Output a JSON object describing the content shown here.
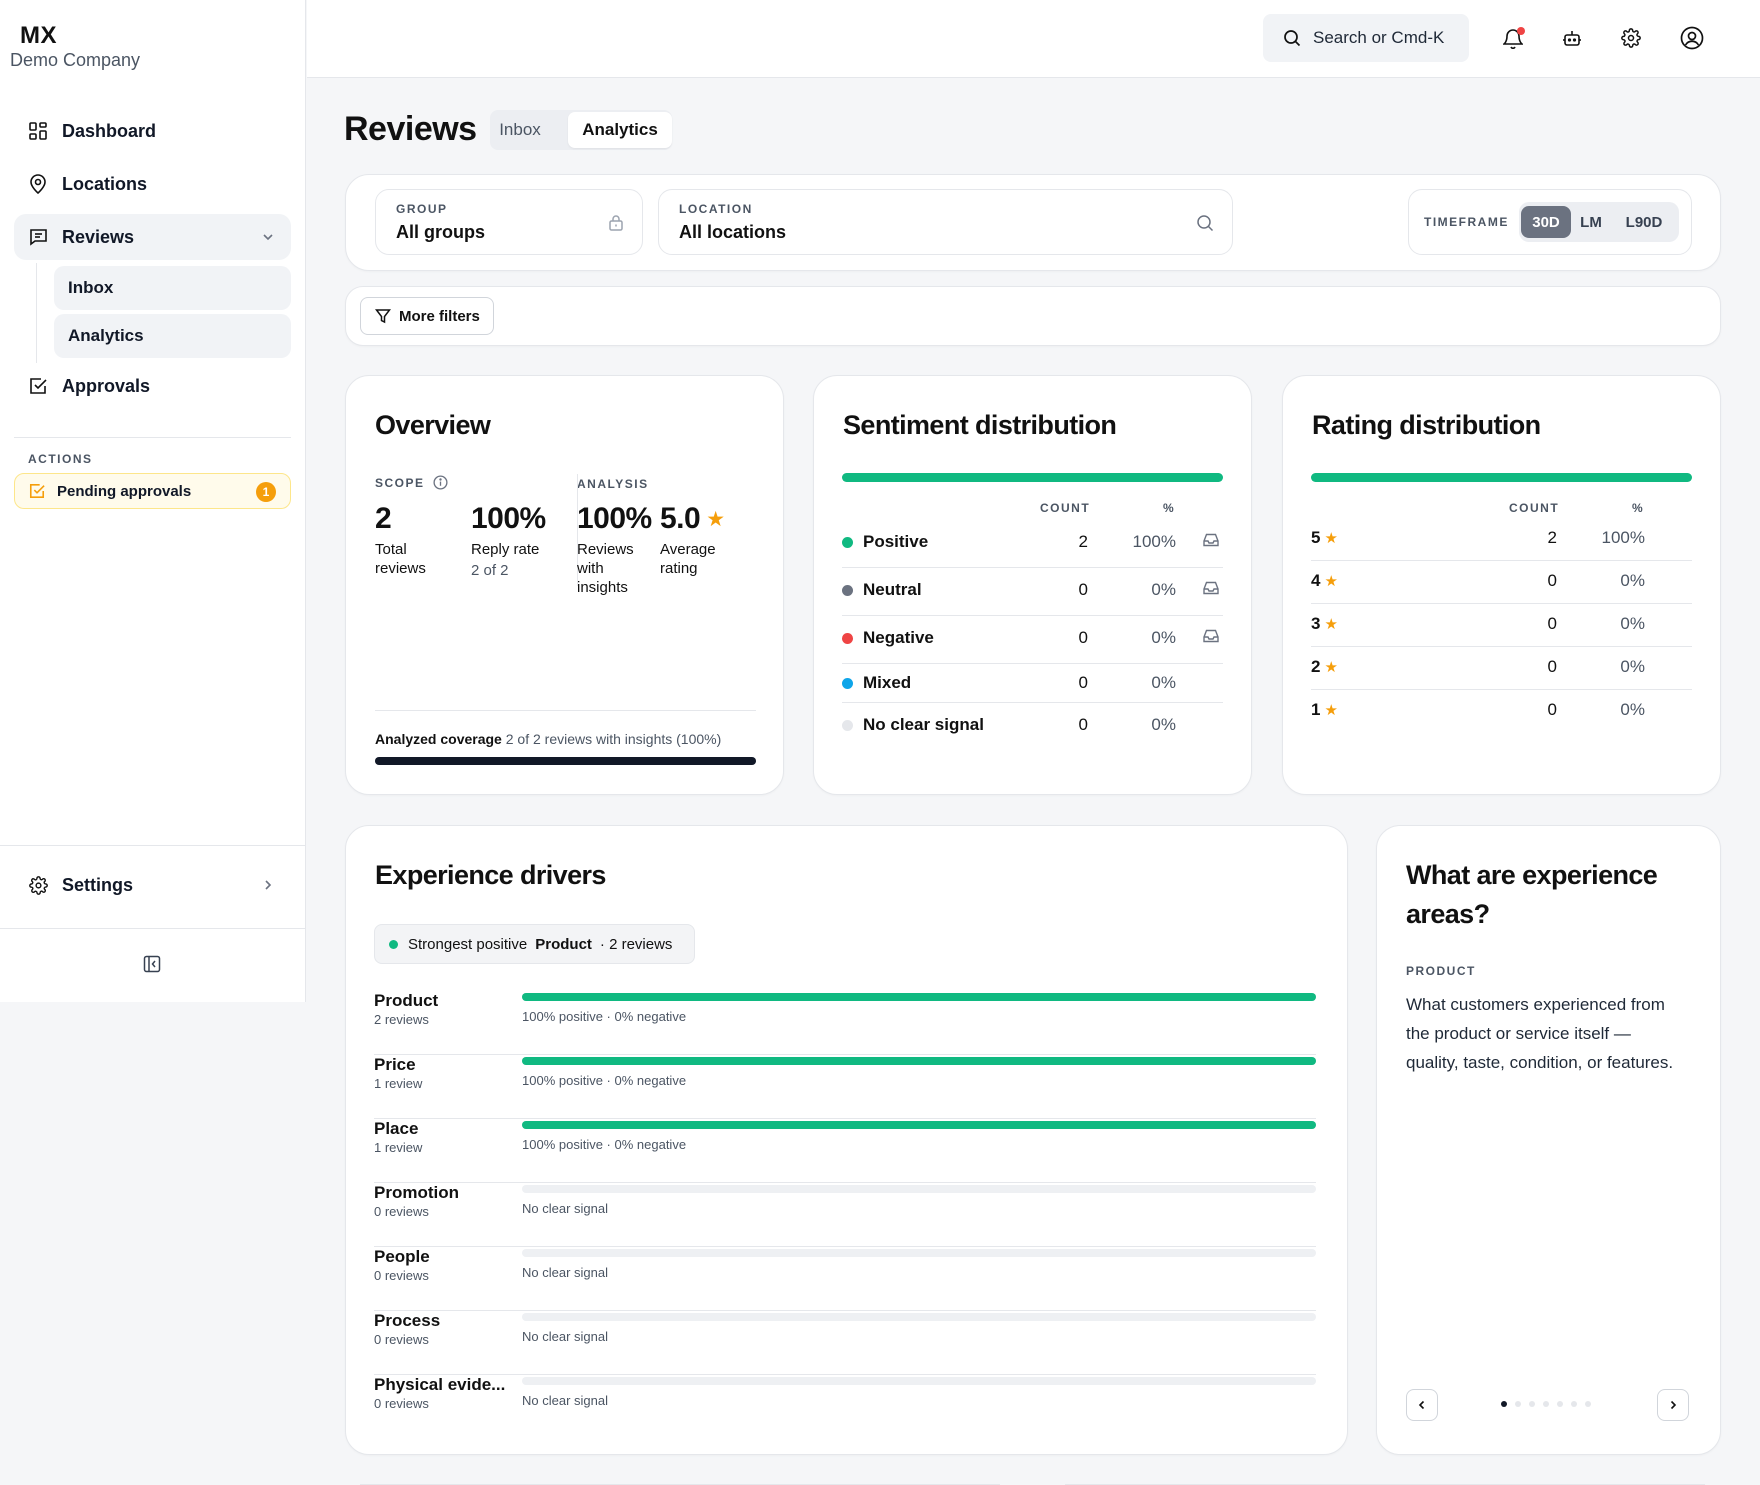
{
  "brand": {
    "name": "MX",
    "company": "Demo Company"
  },
  "sidebar": {
    "items": [
      {
        "label": "Dashboard"
      },
      {
        "label": "Locations"
      },
      {
        "label": "Reviews"
      },
      {
        "label": "Approvals"
      }
    ],
    "sub_items": [
      {
        "label": "Inbox"
      },
      {
        "label": "Analytics"
      }
    ],
    "actions_label": "ACTIONS",
    "pending": {
      "label": "Pending approvals",
      "count": "1"
    },
    "settings_label": "Settings"
  },
  "topbar": {
    "search_placeholder": "Search or Cmd-K"
  },
  "page": {
    "title": "Reviews",
    "tabs": [
      {
        "label": "Inbox"
      },
      {
        "label": "Analytics"
      }
    ],
    "active_tab": "Analytics"
  },
  "filters": {
    "group": {
      "label": "GROUP",
      "value": "All groups"
    },
    "location": {
      "label": "LOCATION",
      "value": "All locations"
    },
    "timeframe": {
      "label": "TIMEFRAME",
      "options": [
        "30D",
        "LM",
        "L90D"
      ],
      "selected": "30D"
    },
    "more_filters": "More filters"
  },
  "overview": {
    "title": "Overview",
    "scope_label": "SCOPE",
    "analysis_label": "ANALYSIS",
    "total_reviews": {
      "value": "2",
      "label": "Total reviews"
    },
    "reply_rate": {
      "value": "100%",
      "label": "Reply rate",
      "sub": "2 of 2"
    },
    "insights": {
      "value": "100%",
      "label": "Reviews with insights"
    },
    "avg_rating": {
      "value": "5.0",
      "label": "Average rating"
    },
    "coverage_label": "Analyzed coverage",
    "coverage_text": "2 of 2 reviews with insights (100%)",
    "coverage_fraction": 1.0
  },
  "sentiment": {
    "title": "Sentiment distribution",
    "count_header": "COUNT",
    "pct_header": "%",
    "rows": [
      {
        "label": "Positive",
        "count": "2",
        "pct": "100%",
        "color": "#10b981"
      },
      {
        "label": "Neutral",
        "count": "0",
        "pct": "0%",
        "color": "#6b7280"
      },
      {
        "label": "Negative",
        "count": "0",
        "pct": "0%",
        "color": "#ef4444"
      },
      {
        "label": "Mixed",
        "count": "0",
        "pct": "0%",
        "color": "#0ea5e9"
      },
      {
        "label": "No clear signal",
        "count": "0",
        "pct": "0%",
        "color": "#e5e7eb"
      }
    ]
  },
  "rating": {
    "title": "Rating distribution",
    "count_header": "COUNT",
    "pct_header": "%",
    "rows": [
      {
        "stars": "5",
        "count": "2",
        "pct": "100%"
      },
      {
        "stars": "4",
        "count": "0",
        "pct": "0%"
      },
      {
        "stars": "3",
        "count": "0",
        "pct": "0%"
      },
      {
        "stars": "2",
        "count": "0",
        "pct": "0%"
      },
      {
        "stars": "1",
        "count": "0",
        "pct": "0%"
      }
    ]
  },
  "drivers": {
    "title": "Experience drivers",
    "strongest": {
      "prefix": "Strongest positive",
      "name": "Product",
      "suffix": "· 2 reviews"
    },
    "rows": [
      {
        "name": "Product",
        "count": "2 reviews",
        "text": "100% positive · 0% negative",
        "positive": 1.0
      },
      {
        "name": "Price",
        "count": "1 review",
        "text": "100% positive · 0% negative",
        "positive": 1.0
      },
      {
        "name": "Place",
        "count": "1 review",
        "text": "100% positive · 0% negative",
        "positive": 1.0
      },
      {
        "name": "Promotion",
        "count": "0 reviews",
        "text": "No clear signal",
        "positive": 0
      },
      {
        "name": "People",
        "count": "0 reviews",
        "text": "No clear signal",
        "positive": 0
      },
      {
        "name": "Process",
        "count": "0 reviews",
        "text": "No clear signal",
        "positive": 0
      },
      {
        "name": "Physical evide...",
        "count": "0 reviews",
        "text": "No clear signal",
        "positive": 0
      }
    ]
  },
  "areas": {
    "title": "What are experience areas?",
    "category": "PRODUCT",
    "text": "What customers experienced from the product or service itself — quality, taste, condition, or features.",
    "pages": 7,
    "current_page": 1
  },
  "colors": {
    "positive": "#10b981",
    "accent_star": "#f59e0b",
    "badge": "#f59e0b"
  }
}
